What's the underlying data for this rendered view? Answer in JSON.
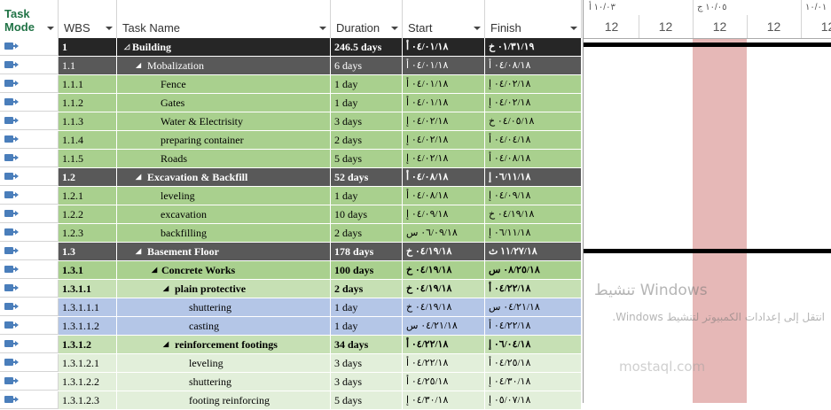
{
  "headers": {
    "mode": "Task Mode",
    "wbs": "WBS",
    "name": "Task Name",
    "duration": "Duration",
    "start": "Start",
    "finish": "Finish"
  },
  "gantt": {
    "top_labels": [
      "١٠/٠٣ أ",
      "١٠/٠٥ ج",
      "١٠/٠١"
    ],
    "bottom_labels": [
      "12",
      "12",
      "12",
      "12",
      "12"
    ]
  },
  "colors": {
    "summary1": "#262626",
    "summary2": "#595959",
    "green": "#a9d08e",
    "light_green": "#c6e0b4",
    "pale_green": "#e2efda",
    "blue": "#b4c6e7",
    "highlight": "#e6b8b7"
  },
  "rows": [
    {
      "wbs": "1",
      "name": "Building",
      "duration": "246.5 days",
      "start": "٠٤/٠١/١٨ أ",
      "finish": "٠١/٣١/١٩ خ",
      "style": "summary1",
      "level": 1,
      "summary": true,
      "bold": true
    },
    {
      "wbs": "1.1",
      "name": "Mobalization",
      "duration": "6 days",
      "start": "٠٤/٠١/١٨ أ",
      "finish": "٠٤/٠٨/١٨ أ",
      "style": "summary2",
      "level": 2,
      "summary": true,
      "bold": false
    },
    {
      "wbs": "1.1.1",
      "name": "Fence",
      "duration": "1 day",
      "start": "٠٤/٠١/١٨ أ",
      "finish": "٠٤/٠٢/١٨ إ",
      "style": "green",
      "level": 3
    },
    {
      "wbs": "1.1.2",
      "name": "Gates",
      "duration": "1 day",
      "start": "٠٤/٠١/١٨ أ",
      "finish": "٠٤/٠٢/١٨ إ",
      "style": "green",
      "level": 3
    },
    {
      "wbs": "1.1.3",
      "name": "Water & Electrisity",
      "duration": "3 days",
      "start": "٠٤/٠٢/١٨ إ",
      "finish": "٠٤/٠٥/١٨ خ",
      "style": "green",
      "level": 3
    },
    {
      "wbs": "1.1.4",
      "name": "preparing container",
      "duration": "2 days",
      "start": "٠٤/٠٢/١٨ إ",
      "finish": "٠٤/٠٤/١٨ أ",
      "style": "green",
      "level": 3
    },
    {
      "wbs": "1.1.5",
      "name": "Roads",
      "duration": "5 days",
      "start": "٠٤/٠٢/١٨ إ",
      "finish": "٠٤/٠٨/١٨ أ",
      "style": "green",
      "level": 3
    },
    {
      "wbs": "1.2",
      "name": "Excavation & Backfill",
      "duration": "52 days",
      "start": "٠٤/٠٨/١٨ أ",
      "finish": "٠٦/١١/١٨ إ",
      "style": "summary2",
      "level": 2,
      "summary": true,
      "bold": true
    },
    {
      "wbs": "1.2.1",
      "name": "leveling",
      "duration": "1 day",
      "start": "٠٤/٠٨/١٨ أ",
      "finish": "٠٤/٠٩/١٨ إ",
      "style": "green",
      "level": 3
    },
    {
      "wbs": "1.2.2",
      "name": "excavation",
      "duration": "10 days",
      "start": "٠٤/٠٩/١٨ إ",
      "finish": "٠٤/١٩/١٨ خ",
      "style": "green",
      "level": 3
    },
    {
      "wbs": "1.2.3",
      "name": "backfilling",
      "duration": "2 days",
      "start": "٠٦/٠٩/١٨ س",
      "finish": "٠٦/١١/١٨ إ",
      "style": "green",
      "level": 3
    },
    {
      "wbs": "1.3",
      "name": "Basement Floor",
      "duration": "178 days",
      "start": "٠٤/١٩/١٨ خ",
      "finish": "١١/٢٧/١٨ ث",
      "style": "summary2",
      "level": 2,
      "summary": true,
      "bold": true
    },
    {
      "wbs": "1.3.1",
      "name": "Concrete Works",
      "duration": "100 days",
      "start": "٠٤/١٩/١٨ خ",
      "finish": "٠٨/٢٥/١٨ س",
      "style": "green",
      "level": 3,
      "summary": true,
      "bold": true
    },
    {
      "wbs": "1.3.1.1",
      "name": "plain protective",
      "duration": "2 days",
      "start": "٠٤/١٩/١٨ خ",
      "finish": "٠٤/٢٢/١٨ أ",
      "style": "light_green",
      "level": 4,
      "summary": true,
      "bold": true
    },
    {
      "wbs": "1.3.1.1.1",
      "name": "shuttering",
      "duration": "1 day",
      "start": "٠٤/١٩/١٨ خ",
      "finish": "٠٤/٢١/١٨ س",
      "style": "blue",
      "level": 5
    },
    {
      "wbs": "1.3.1.1.2",
      "name": "casting",
      "duration": "1 day",
      "start": "٠٤/٢١/١٨ س",
      "finish": "٠٤/٢٢/١٨ أ",
      "style": "blue",
      "level": 5
    },
    {
      "wbs": "1.3.1.2",
      "name": "reinforcement footings",
      "duration": "34 days",
      "start": "٠٤/٢٢/١٨ أ",
      "finish": "٠٦/٠٤/١٨ إ",
      "style": "light_green",
      "level": 4,
      "summary": true,
      "bold": true
    },
    {
      "wbs": "1.3.1.2.1",
      "name": "leveling",
      "duration": "3 days",
      "start": "٠٤/٢٢/١٨ أ",
      "finish": "٠٤/٢٥/١٨ أ",
      "style": "pale_green",
      "level": 5
    },
    {
      "wbs": "1.3.1.2.2",
      "name": "shuttering",
      "duration": "3 days",
      "start": "٠٤/٢٥/١٨ أ",
      "finish": "٠٤/٣٠/١٨ إ",
      "style": "pale_green",
      "level": 5
    },
    {
      "wbs": "1.3.1.2.3",
      "name": "footing reinforcing",
      "duration": "5 days",
      "start": "٠٤/٣٠/١٨ إ",
      "finish": "٠٥/٠٧/١٨ إ",
      "style": "pale_green",
      "level": 5
    }
  ],
  "watermark": {
    "line1": "تنشيط Windows",
    "line2": "انتقل إلى إعدادات الكمبيوتر لتنشيط Windows.",
    "logo": "mostaql.com"
  }
}
